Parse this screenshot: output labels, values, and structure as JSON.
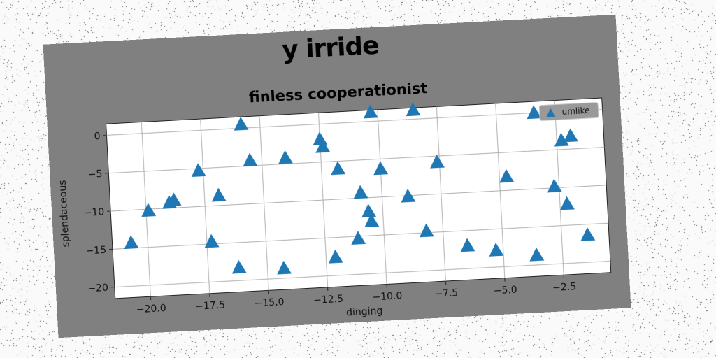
{
  "colors": {
    "card_background": "#808080",
    "plot_background": "#ffffff",
    "marker": "#1f77b4",
    "grid": "#b0b0b0"
  },
  "chart_data": {
    "type": "scatter",
    "title": "y irride",
    "subtitle": "finless cooperationist",
    "xlabel": "dinging",
    "ylabel": "splendaceous",
    "xlim": [
      -21.5,
      -0.5
    ],
    "ylim": [
      -21.5,
      1.5
    ],
    "xticks": [
      -20.0,
      -17.5,
      -15.0,
      -12.5,
      -10.0,
      -7.5,
      -5.0,
      -2.5
    ],
    "xtick_labels": [
      "−20.0",
      "−17.5",
      "−15.0",
      "−12.5",
      "−10.0",
      "−7.5",
      "−5.0",
      "−2.5"
    ],
    "yticks": [
      0,
      -5,
      -10,
      -15,
      -20
    ],
    "ytick_labels": [
      "0",
      "−5",
      "−10",
      "−15",
      "−20"
    ],
    "grid": true,
    "legend_position": "top-right",
    "marker": "triangle-up",
    "series": [
      {
        "name": "umlike",
        "points": [
          {
            "x": -20.7,
            "y": -14.3
          },
          {
            "x": -19.9,
            "y": -10.2
          },
          {
            "x": -19.0,
            "y": -9.3
          },
          {
            "x": -18.8,
            "y": -9.0
          },
          {
            "x": -17.7,
            "y": -5.3
          },
          {
            "x": -17.3,
            "y": -14.7
          },
          {
            "x": -16.9,
            "y": -8.7
          },
          {
            "x": -16.2,
            "y": -18.3
          },
          {
            "x": -15.8,
            "y": 0.5
          },
          {
            "x": -15.5,
            "y": -4.3
          },
          {
            "x": -14.3,
            "y": -18.7
          },
          {
            "x": -14.0,
            "y": -4.2
          },
          {
            "x": -12.5,
            "y": -2.0
          },
          {
            "x": -12.4,
            "y": -3.0
          },
          {
            "x": -12.1,
            "y": -17.6
          },
          {
            "x": -11.8,
            "y": -6.0
          },
          {
            "x": -11.1,
            "y": -15.3
          },
          {
            "x": -10.9,
            "y": -9.3
          },
          {
            "x": -10.6,
            "y": -11.8
          },
          {
            "x": -10.5,
            "y": -13.1
          },
          {
            "x": -10.3,
            "y": 1.2
          },
          {
            "x": -10.0,
            "y": -6.3
          },
          {
            "x": -8.9,
            "y": -10.1
          },
          {
            "x": -8.5,
            "y": 1.2
          },
          {
            "x": -8.2,
            "y": -14.8
          },
          {
            "x": -7.6,
            "y": -5.8
          },
          {
            "x": -6.5,
            "y": -17.0
          },
          {
            "x": -5.3,
            "y": -17.8
          },
          {
            "x": -4.7,
            "y": -8.2
          },
          {
            "x": -3.6,
            "y": -18.7
          },
          {
            "x": -3.4,
            "y": 0.0
          },
          {
            "x": -2.7,
            "y": -9.8
          },
          {
            "x": -2.3,
            "y": -3.8
          },
          {
            "x": -2.2,
            "y": -12.2
          },
          {
            "x": -1.9,
            "y": -3.3
          },
          {
            "x": -1.4,
            "y": -16.4
          }
        ]
      }
    ]
  }
}
